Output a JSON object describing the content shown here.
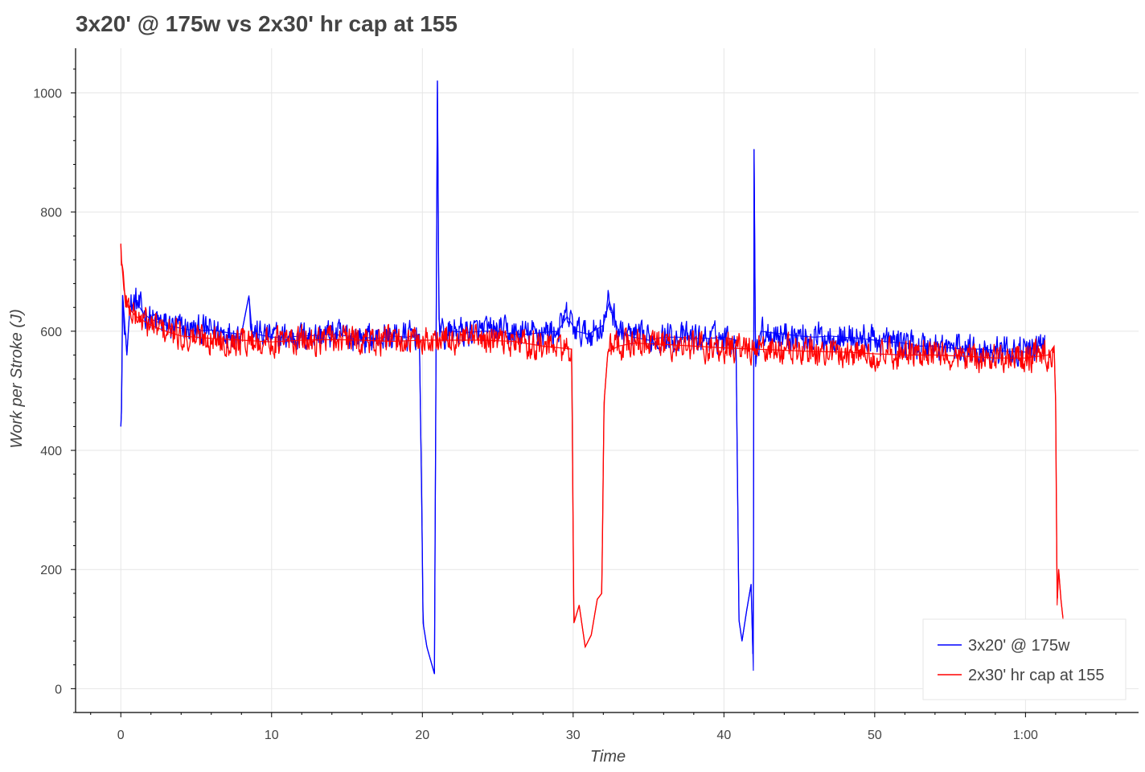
{
  "chart_data": {
    "type": "line",
    "title": "3x20' @ 175w vs 2x30' hr cap at 155",
    "xlabel": "Time",
    "ylabel": "Work per Stroke (J)",
    "xlim": [
      -3,
      67.5
    ],
    "ylim": [
      -40,
      1075
    ],
    "x_ticks": [
      {
        "value": 0,
        "label": "0"
      },
      {
        "value": 10,
        "label": "10"
      },
      {
        "value": 20,
        "label": "20"
      },
      {
        "value": 30,
        "label": "30"
      },
      {
        "value": 40,
        "label": "40"
      },
      {
        "value": 50,
        "label": "50"
      },
      {
        "value": 60,
        "label": "1:00"
      }
    ],
    "y_ticks": [
      {
        "value": 0,
        "label": "0"
      },
      {
        "value": 200,
        "label": "200"
      },
      {
        "value": 400,
        "label": "400"
      },
      {
        "value": 600,
        "label": "600"
      },
      {
        "value": 800,
        "label": "800"
      },
      {
        "value": 1000,
        "label": "1000"
      }
    ],
    "grid": true,
    "legend_position": "bottom-right",
    "series": [
      {
        "name": "3x20' @ 175w",
        "color": "#0000ff",
        "x": [
          0,
          0.05,
          0.12,
          0.25,
          0.4,
          0.6,
          1,
          1.5,
          2,
          3,
          4,
          5,
          6,
          7,
          8,
          8.5,
          8.7,
          9,
          10,
          11,
          12,
          13,
          14,
          15,
          16,
          17,
          18,
          19,
          19.8,
          19.95,
          20.05,
          20.3,
          20.8,
          21.0,
          21.1,
          21.25,
          21.4,
          22,
          23,
          24,
          25,
          26,
          27,
          28,
          29,
          29.6,
          30.2,
          31,
          32,
          32.4,
          33,
          34,
          35,
          36,
          37,
          38,
          39,
          40,
          40.8,
          41.0,
          41.2,
          41.5,
          41.8,
          41.95,
          42.0,
          42.1,
          42.25,
          42.45,
          43,
          44,
          45,
          46,
          47,
          48,
          49,
          50,
          51,
          52,
          53,
          54,
          55,
          56,
          57,
          58,
          59,
          60,
          60.8,
          61.3
        ],
        "y": [
          440,
          470,
          660,
          620,
          560,
          640,
          650,
          630,
          620,
          610,
          605,
          600,
          602,
          598,
          595,
          660,
          600,
          595,
          590,
          590,
          592,
          593,
          595,
          592,
          590,
          588,
          592,
          590,
          595,
          330,
          110,
          70,
          25,
          1020,
          620,
          600,
          590,
          600,
          598,
          600,
          600,
          595,
          595,
          598,
          600,
          625,
          600,
          595,
          610,
          650,
          600,
          590,
          585,
          590,
          590,
          588,
          588,
          590,
          585,
          115,
          80,
          130,
          175,
          30,
          905,
          540,
          580,
          600,
          598,
          595,
          592,
          590,
          592,
          590,
          588,
          585,
          582,
          580,
          575,
          575,
          572,
          570,
          570,
          568,
          566,
          565,
          575,
          578
        ]
      },
      {
        "name": "2x30' hr cap at 155",
        "color": "#ff0000",
        "x": [
          0,
          0.05,
          0.2,
          0.5,
          1,
          2,
          3,
          4,
          5,
          6,
          8,
          10,
          12,
          14,
          16,
          18,
          20,
          22,
          24,
          26,
          28,
          29.9,
          30.05,
          30.4,
          30.8,
          31.2,
          31.6,
          31.9,
          32.05,
          32.3,
          33,
          34,
          36,
          38,
          40,
          42,
          44,
          46,
          48,
          50,
          52,
          54,
          56,
          58,
          60,
          61.5,
          61.9,
          62.0,
          62.1,
          62.2,
          62.35,
          62.5
        ],
        "y": [
          745,
          720,
          670,
          640,
          625,
          610,
          600,
          592,
          590,
          588,
          585,
          582,
          585,
          586,
          585,
          583,
          585,
          585,
          585,
          583,
          575,
          570,
          110,
          140,
          70,
          90,
          150,
          160,
          480,
          565,
          575,
          580,
          578,
          575,
          572,
          570,
          568,
          566,
          565,
          562,
          560,
          560,
          558,
          555,
          555,
          560,
          575,
          480,
          140,
          200,
          150,
          115
        ]
      }
    ]
  }
}
